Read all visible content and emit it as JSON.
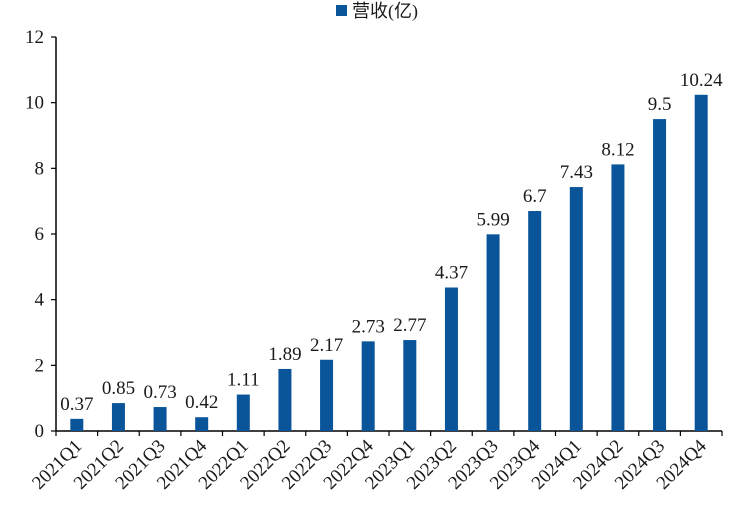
{
  "chart_data": {
    "type": "bar",
    "categories": [
      "2021Q1",
      "2021Q2",
      "2021Q3",
      "2021Q4",
      "2022Q1",
      "2022Q2",
      "2022Q3",
      "2022Q4",
      "2023Q1",
      "2023Q2",
      "2023Q3",
      "2023Q4",
      "2024Q1",
      "2024Q2",
      "2024Q3",
      "2024Q4"
    ],
    "series": [
      {
        "name": "营收(亿)",
        "values": [
          0.37,
          0.85,
          0.73,
          0.42,
          1.11,
          1.89,
          2.17,
          2.73,
          2.77,
          4.37,
          5.99,
          6.7,
          7.43,
          8.12,
          9.5,
          10.24
        ],
        "labels": [
          "0.37",
          "0.85",
          "0.73",
          "0.42",
          "1.11",
          "1.89",
          "2.17",
          "2.73",
          "2.77",
          "4.37",
          "5.99",
          "6.7",
          "7.43",
          "8.12",
          "9.5",
          "10.24"
        ],
        "color": "#0a5599"
      }
    ],
    "title": "",
    "xlabel": "",
    "ylabel": "",
    "ylim": [
      0,
      12
    ],
    "yticks": [
      "0",
      "2",
      "4",
      "6",
      "8",
      "10",
      "12"
    ],
    "ytick_values": [
      0,
      2,
      4,
      6,
      8,
      10,
      12
    ],
    "grid": false,
    "legend_position": "top-center"
  }
}
